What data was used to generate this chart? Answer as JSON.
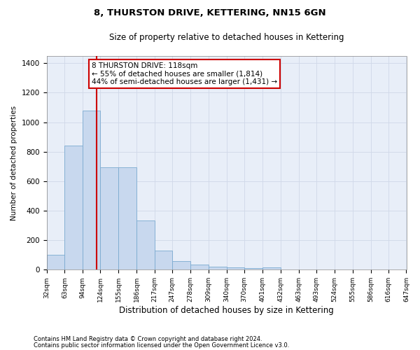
{
  "title": "8, THURSTON DRIVE, KETTERING, NN15 6GN",
  "subtitle": "Size of property relative to detached houses in Kettering",
  "xlabel": "Distribution of detached houses by size in Kettering",
  "ylabel": "Number of detached properties",
  "footnote1": "Contains HM Land Registry data © Crown copyright and database right 2024.",
  "footnote2": "Contains public sector information licensed under the Open Government Licence v3.0.",
  "bar_edges": [
    32,
    63,
    94,
    124,
    155,
    186,
    217,
    247,
    278,
    309,
    340,
    370,
    401,
    432,
    463,
    493,
    524,
    555,
    586,
    616,
    647
  ],
  "bar_heights": [
    100,
    840,
    1080,
    695,
    695,
    335,
    130,
    60,
    35,
    20,
    15,
    10,
    15,
    0,
    0,
    0,
    0,
    0,
    0,
    0
  ],
  "bar_color": "#c8d8ee",
  "bar_edgecolor": "#7aaad0",
  "grid_color": "#d0d8e8",
  "bg_color": "#e8eef8",
  "property_line_x": 118,
  "property_line_color": "#cc0000",
  "annotation_line1": "8 THURSTON DRIVE: 118sqm",
  "annotation_line2": "← 55% of detached houses are smaller (1,814)",
  "annotation_line3": "44% of semi-detached houses are larger (1,431) →",
  "annotation_box_color": "#cc0000",
  "ylim": [
    0,
    1450
  ],
  "yticks": [
    0,
    200,
    400,
    600,
    800,
    1000,
    1200,
    1400
  ],
  "title_fontsize": 9.5,
  "subtitle_fontsize": 8.5,
  "ylabel_fontsize": 7.5,
  "xlabel_fontsize": 8.5,
  "ytick_fontsize": 7.5,
  "xtick_fontsize": 6.5,
  "annot_fontsize": 7.5,
  "footnote_fontsize": 6.0
}
